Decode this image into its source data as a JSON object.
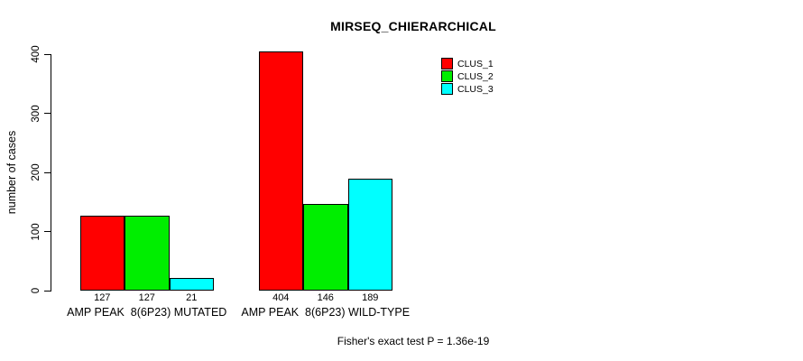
{
  "chart_data": {
    "type": "bar",
    "title": "MIRSEQ_CHIERARCHICAL",
    "ylabel": "number of cases",
    "ylim": [
      0,
      400
    ],
    "yticks": [
      0,
      100,
      200,
      300,
      400
    ],
    "grid": false,
    "legend_position": "top-right",
    "background_color": "#ffffff",
    "bar_border_color": "#000000",
    "categories": [
      "AMP PEAK  8(6P23) MUTATED",
      "AMP PEAK  8(6P23) WILD-TYPE"
    ],
    "series": [
      {
        "name": "CLUS_1",
        "color": "#ff0000",
        "values": [
          127,
          404
        ]
      },
      {
        "name": "CLUS_2",
        "color": "#00ee00",
        "values": [
          127,
          146
        ]
      },
      {
        "name": "CLUS_3",
        "color": "#00ffff",
        "values": [
          21,
          189
        ]
      }
    ],
    "bar_value_labels": [
      [
        127,
        127,
        21
      ],
      [
        404,
        146,
        189
      ]
    ],
    "annotation": "Fisher's exact test P = 1.36e-19"
  }
}
